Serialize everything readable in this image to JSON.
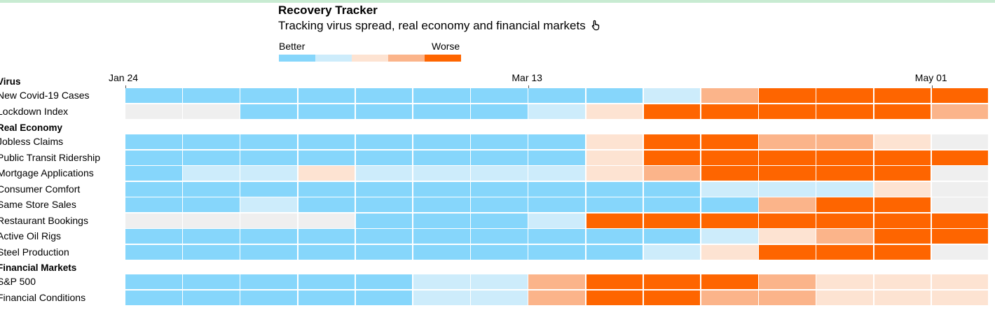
{
  "header": {
    "title": "Recovery Tracker",
    "subtitle": "Tracking virus spread, real economy and financial markets"
  },
  "legend": {
    "better_label": "Better",
    "worse_label": "Worse",
    "levels": [
      {
        "level": 1,
        "color": "#86d6fb"
      },
      {
        "level": 2,
        "color": "#cdecfb"
      },
      {
        "level": 3,
        "color": "#fde3d2"
      },
      {
        "level": 4,
        "color": "#fbb48a"
      },
      {
        "level": 5,
        "color": "#fe6500"
      }
    ],
    "no_data_color": "#efefef"
  },
  "chart_data": {
    "type": "heatmap",
    "title": "Recovery Tracker",
    "subtitle": "Tracking virus spread, real economy and financial markets",
    "x_tick_labels": [
      {
        "label": "Jan 24",
        "column": 0
      },
      {
        "label": "Mar 13",
        "column": 7
      },
      {
        "label": "May 01",
        "column": 14
      }
    ],
    "columns": 15,
    "scale": "1 = Better … 5 = Worse, 0 = no data",
    "groups": [
      {
        "name": "Virus",
        "rows": [
          {
            "name": "New Covid-19 Cases",
            "values": [
              1,
              1,
              1,
              1,
              1,
              1,
              1,
              1,
              1,
              2,
              4,
              5,
              5,
              5,
              5
            ]
          },
          {
            "name": "Lockdown Index",
            "values": [
              0,
              0,
              1,
              1,
              1,
              1,
              1,
              2,
              3,
              5,
              5,
              5,
              5,
              5,
              4
            ]
          }
        ]
      },
      {
        "name": "Real Economy",
        "rows": [
          {
            "name": "Jobless Claims",
            "values": [
              1,
              1,
              1,
              1,
              1,
              1,
              1,
              1,
              3,
              5,
              5,
              4,
              4,
              3,
              0
            ]
          },
          {
            "name": "Public Transit Ridership",
            "values": [
              1,
              1,
              1,
              1,
              1,
              1,
              1,
              1,
              3,
              5,
              5,
              5,
              5,
              5,
              5
            ]
          },
          {
            "name": "Mortgage Applications",
            "values": [
              1,
              2,
              2,
              3,
              2,
              2,
              2,
              2,
              3,
              4,
              5,
              5,
              5,
              5,
              0
            ]
          },
          {
            "name": "Consumer Comfort",
            "values": [
              1,
              1,
              1,
              1,
              1,
              1,
              1,
              1,
              1,
              1,
              2,
              2,
              2,
              3,
              0
            ]
          },
          {
            "name": "Same Store Sales",
            "values": [
              1,
              1,
              2,
              1,
              1,
              1,
              1,
              1,
              1,
              1,
              1,
              4,
              5,
              5,
              0
            ]
          },
          {
            "name": "Restaurant Bookings",
            "values": [
              0,
              0,
              0,
              0,
              1,
              1,
              1,
              2,
              5,
              5,
              5,
              5,
              5,
              5,
              5
            ]
          },
          {
            "name": "Active Oil Rigs",
            "values": [
              1,
              1,
              1,
              1,
              1,
              1,
              1,
              1,
              1,
              1,
              2,
              3,
              4,
              5,
              5
            ]
          },
          {
            "name": "Steel Production",
            "values": [
              1,
              1,
              1,
              1,
              1,
              1,
              1,
              1,
              1,
              2,
              3,
              5,
              5,
              5,
              0
            ]
          }
        ]
      },
      {
        "name": "Financial Markets",
        "rows": [
          {
            "name": "S&P 500",
            "values": [
              1,
              1,
              1,
              1,
              1,
              2,
              2,
              4,
              5,
              5,
              5,
              4,
              3,
              3,
              3
            ]
          },
          {
            "name": "Financial Conditions",
            "values": [
              1,
              1,
              1,
              1,
              1,
              2,
              2,
              4,
              5,
              5,
              4,
              4,
              3,
              3,
              3
            ]
          }
        ]
      }
    ]
  }
}
